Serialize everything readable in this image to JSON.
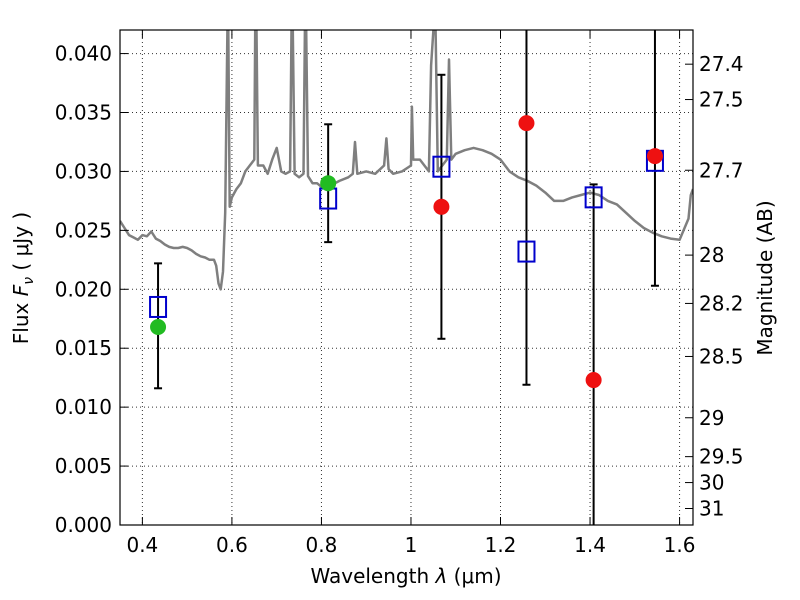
{
  "chart_data": {
    "type": "scatter",
    "xlabel_prefix": "Wavelength  ",
    "xlabel_symbol": "λ",
    "xlabel_unit": " (μm)",
    "ylabel_prefix": "Flux  ",
    "ylabel_symbol": "F",
    "ylabel_sub": "ν",
    "ylabel_unit": "  ( μJy )",
    "y2label": "Magnitude (AB)",
    "xlim": [
      0.35,
      1.63
    ],
    "ylim": [
      0.0,
      0.042
    ],
    "grid": true,
    "xticks": [
      0.4,
      0.6,
      0.8,
      1.0,
      1.2,
      1.4,
      1.6
    ],
    "xtick_labels": [
      "0.4",
      "0.6",
      "0.8",
      "1",
      "1.2",
      "1.4",
      "1.6"
    ],
    "yticks": [
      0.0,
      0.005,
      0.01,
      0.015,
      0.02,
      0.025,
      0.03,
      0.035,
      0.04
    ],
    "ytick_labels": [
      "0.000",
      "0.005",
      "0.010",
      "0.015",
      "0.020",
      "0.025",
      "0.030",
      "0.035",
      "0.040"
    ],
    "mag_ticks": [
      {
        "flux": 0.0391,
        "label": "27.4"
      },
      {
        "flux": 0.0361,
        "label": "27.5"
      },
      {
        "flux": 0.0301,
        "label": "27.7"
      },
      {
        "flux": 0.0229,
        "label": "28"
      },
      {
        "flux": 0.0188,
        "label": "28.2"
      },
      {
        "flux": 0.0143,
        "label": "28.5"
      },
      {
        "flux": 0.0091,
        "label": "29"
      },
      {
        "flux": 0.0058,
        "label": "29.5"
      },
      {
        "flux": 0.0036,
        "label": "30"
      },
      {
        "flux": 0.0014,
        "label": "31"
      }
    ],
    "spectrum": {
      "color": "#7f7f7f",
      "points": [
        [
          0.35,
          0.0258
        ],
        [
          0.36,
          0.0252
        ],
        [
          0.37,
          0.0246
        ],
        [
          0.38,
          0.0244
        ],
        [
          0.39,
          0.0242
        ],
        [
          0.4,
          0.0246
        ],
        [
          0.41,
          0.0245
        ],
        [
          0.42,
          0.0249
        ],
        [
          0.43,
          0.0243
        ],
        [
          0.44,
          0.0241
        ],
        [
          0.45,
          0.0238
        ],
        [
          0.46,
          0.0236
        ],
        [
          0.47,
          0.0235
        ],
        [
          0.48,
          0.0235
        ],
        [
          0.49,
          0.0236
        ],
        [
          0.5,
          0.0235
        ],
        [
          0.51,
          0.0233
        ],
        [
          0.52,
          0.023
        ],
        [
          0.53,
          0.0228
        ],
        [
          0.54,
          0.0227
        ],
        [
          0.55,
          0.0225
        ],
        [
          0.56,
          0.0225
        ],
        [
          0.565,
          0.022
        ],
        [
          0.57,
          0.0205
        ],
        [
          0.575,
          0.02
        ],
        [
          0.58,
          0.0215
        ],
        [
          0.585,
          0.0265
        ],
        [
          0.59,
          0.042
        ],
        [
          0.592,
          0.042
        ],
        [
          0.595,
          0.027
        ],
        [
          0.6,
          0.0278
        ],
        [
          0.61,
          0.0285
        ],
        [
          0.62,
          0.029
        ],
        [
          0.63,
          0.03
        ],
        [
          0.64,
          0.0305
        ],
        [
          0.65,
          0.031
        ],
        [
          0.652,
          0.042
        ],
        [
          0.655,
          0.042
        ],
        [
          0.658,
          0.0305
        ],
        [
          0.67,
          0.0305
        ],
        [
          0.68,
          0.0298
        ],
        [
          0.69,
          0.031
        ],
        [
          0.7,
          0.032
        ],
        [
          0.71,
          0.03
        ],
        [
          0.72,
          0.0298
        ],
        [
          0.73,
          0.03
        ],
        [
          0.733,
          0.042
        ],
        [
          0.736,
          0.042
        ],
        [
          0.74,
          0.0298
        ],
        [
          0.75,
          0.0295
        ],
        [
          0.76,
          0.0298
        ],
        [
          0.763,
          0.042
        ],
        [
          0.766,
          0.042
        ],
        [
          0.77,
          0.0296
        ],
        [
          0.78,
          0.029
        ],
        [
          0.79,
          0.029
        ],
        [
          0.8,
          0.0287
        ],
        [
          0.82,
          0.0288
        ],
        [
          0.84,
          0.0292
        ],
        [
          0.86,
          0.0295
        ],
        [
          0.87,
          0.0298
        ],
        [
          0.875,
          0.0325
        ],
        [
          0.88,
          0.0298
        ],
        [
          0.9,
          0.03
        ],
        [
          0.92,
          0.0298
        ],
        [
          0.94,
          0.0305
        ],
        [
          0.945,
          0.0328
        ],
        [
          0.95,
          0.0302
        ],
        [
          0.96,
          0.0298
        ],
        [
          0.98,
          0.03
        ],
        [
          1.0,
          0.0305
        ],
        [
          1.002,
          0.0355
        ],
        [
          1.005,
          0.031
        ],
        [
          1.02,
          0.031
        ],
        [
          1.04,
          0.03
        ],
        [
          1.045,
          0.039
        ],
        [
          1.05,
          0.042
        ],
        [
          1.055,
          0.042
        ],
        [
          1.06,
          0.03
        ],
        [
          1.07,
          0.0305
        ],
        [
          1.08,
          0.031
        ],
        [
          1.085,
          0.0395
        ],
        [
          1.09,
          0.031
        ],
        [
          1.1,
          0.0315
        ],
        [
          1.12,
          0.0318
        ],
        [
          1.14,
          0.032
        ],
        [
          1.16,
          0.0318
        ],
        [
          1.18,
          0.0315
        ],
        [
          1.2,
          0.031
        ],
        [
          1.22,
          0.03
        ],
        [
          1.24,
          0.0295
        ],
        [
          1.26,
          0.0292
        ],
        [
          1.28,
          0.0288
        ],
        [
          1.3,
          0.0282
        ],
        [
          1.32,
          0.0275
        ],
        [
          1.34,
          0.0275
        ],
        [
          1.36,
          0.0278
        ],
        [
          1.38,
          0.028
        ],
        [
          1.4,
          0.0282
        ],
        [
          1.42,
          0.028
        ],
        [
          1.44,
          0.0275
        ],
        [
          1.46,
          0.0272
        ],
        [
          1.48,
          0.0265
        ],
        [
          1.5,
          0.0258
        ],
        [
          1.52,
          0.0252
        ],
        [
          1.54,
          0.0248
        ],
        [
          1.56,
          0.0245
        ],
        [
          1.58,
          0.0243
        ],
        [
          1.6,
          0.0242
        ],
        [
          1.62,
          0.026
        ],
        [
          1.625,
          0.028
        ],
        [
          1.63,
          0.0285
        ]
      ]
    },
    "series": [
      {
        "marker": "circle",
        "color": "#22bb22",
        "points": [
          {
            "x": 0.435,
            "y": 0.0168
          },
          {
            "x": 0.815,
            "y": 0.029
          }
        ]
      },
      {
        "marker": "circle",
        "color": "#ee1111",
        "points": [
          {
            "x": 1.068,
            "y": 0.027
          },
          {
            "x": 1.258,
            "y": 0.0341
          },
          {
            "x": 1.408,
            "y": 0.0123
          },
          {
            "x": 1.545,
            "y": 0.0313
          }
        ]
      },
      {
        "marker": "square-open",
        "color": "#0000cc",
        "points": [
          {
            "x": 0.435,
            "y": 0.0185,
            "err_low": 0.0116,
            "err_high": 0.0222
          },
          {
            "x": 0.815,
            "y": 0.0277,
            "err_low": 0.024,
            "err_high": 0.034
          },
          {
            "x": 1.068,
            "y": 0.0304,
            "err_low": 0.0158,
            "err_high": 0.0382
          },
          {
            "x": 1.258,
            "y": 0.0232,
            "err_low": 0.0119,
            "err_high": 0.042
          },
          {
            "x": 1.408,
            "y": 0.0278,
            "err_low": 0.0,
            "err_high": 0.0289
          },
          {
            "x": 1.545,
            "y": 0.0309,
            "err_low": 0.0203,
            "err_high": 0.042
          }
        ]
      }
    ]
  }
}
